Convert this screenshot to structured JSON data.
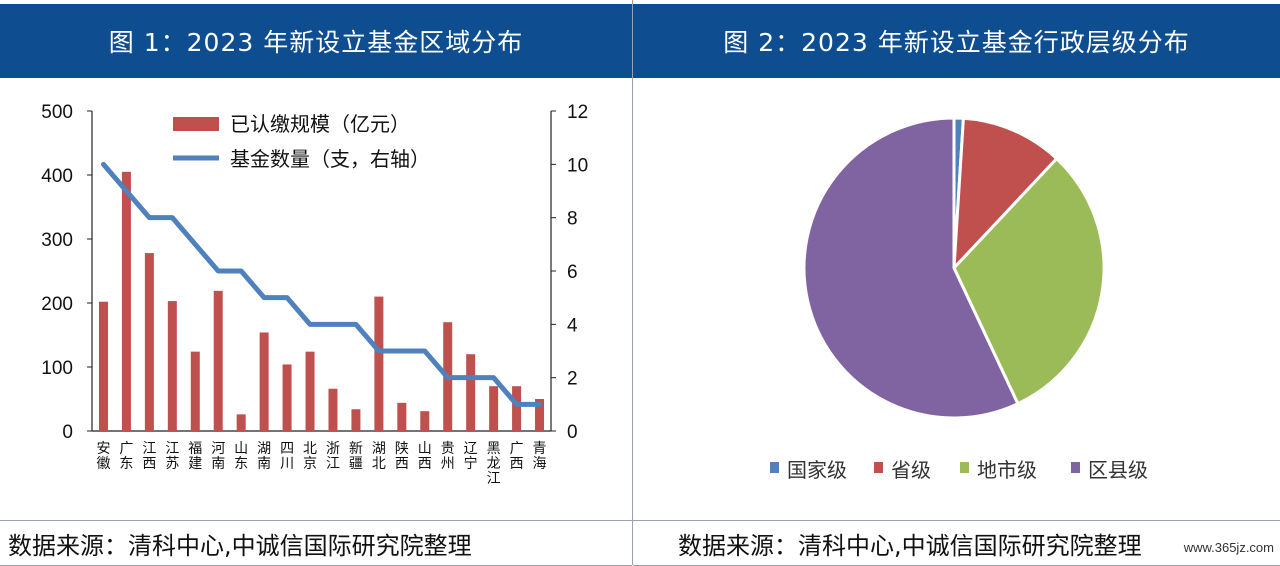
{
  "left": {
    "header": "图 1：2023 年新设立基金区域分布",
    "source": "数据来源：清科中心,中诚信国际研究院整理"
  },
  "right": {
    "header": "图 2：2023 年新设立基金行政层级分布",
    "source": "数据来源：清科中心,中诚信国际研究院整理"
  },
  "watermark": "www.365jz.com",
  "chart_data": [
    {
      "type": "bar",
      "title": "图 1：2023 年新设立基金区域分布",
      "categories": [
        "安徽",
        "广东",
        "江西",
        "江苏",
        "福建",
        "河南",
        "山东",
        "湖南",
        "四川",
        "北京",
        "浙江",
        "新疆",
        "湖北",
        "陕西",
        "山西",
        "贵州",
        "辽宁",
        "黑龙江",
        "广西",
        "青海"
      ],
      "series": [
        {
          "name": "已认缴规模（亿元）",
          "type": "bar",
          "axis": "left",
          "color": "#c0504d",
          "values": [
            202,
            405,
            278,
            203,
            124,
            219,
            26,
            154,
            104,
            124,
            66,
            34,
            210,
            44,
            31,
            170,
            120,
            70,
            70,
            50
          ]
        },
        {
          "name": "基金数量（支，右轴）",
          "type": "line",
          "axis": "right",
          "color": "#4f81bd",
          "values": [
            10,
            9,
            8,
            8,
            7,
            6,
            6,
            5,
            5,
            4,
            4,
            4,
            3,
            3,
            3,
            2,
            2,
            2,
            1,
            1
          ]
        }
      ],
      "yleft": {
        "min": 0,
        "max": 500,
        "ticks": [
          "0",
          "100",
          "200",
          "300",
          "400",
          "500"
        ]
      },
      "yright": {
        "min": 0,
        "max": 12,
        "ticks": [
          "0",
          "2",
          "4",
          "6",
          "8",
          "10",
          "12"
        ]
      },
      "legend": "top-center"
    },
    {
      "type": "pie",
      "title": "图 2：2023 年新设立基金行政层级分布",
      "labels": [
        "国家级",
        "省级",
        "地市级",
        "区县级"
      ],
      "values": [
        1,
        11,
        31,
        57
      ],
      "colors": [
        "#4f81bd",
        "#c0504d",
        "#9bbb59",
        "#8064a2"
      ],
      "legend": "bottom"
    }
  ]
}
